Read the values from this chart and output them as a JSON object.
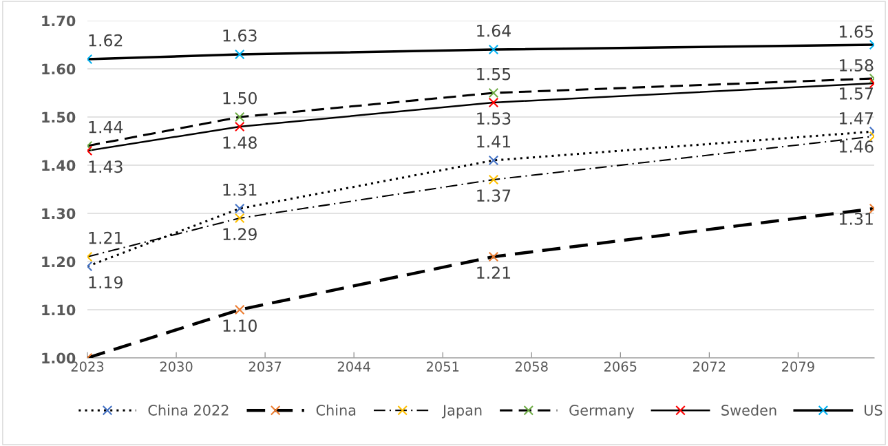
{
  "chart_data": {
    "type": "line",
    "x": [
      2023,
      2035,
      2055,
      2085
    ],
    "xlim": [
      2023,
      2085
    ],
    "xticks": [
      2023,
      2030,
      2037,
      2044,
      2051,
      2058,
      2065,
      2072,
      2079
    ],
    "ylim": [
      1.0,
      1.7
    ],
    "yticks": [
      {
        "value": 1.0,
        "label": "1.00"
      },
      {
        "value": 1.1,
        "label": "1.10"
      },
      {
        "value": 1.2,
        "label": "1.20"
      },
      {
        "value": 1.3,
        "label": "1.30"
      },
      {
        "value": 1.4,
        "label": "1.40"
      },
      {
        "value": 1.5,
        "label": "1.50"
      },
      {
        "value": 1.6,
        "label": "1.60"
      },
      {
        "value": 1.7,
        "label": "1.70"
      }
    ],
    "grid": "y",
    "legend": "bottom",
    "marker": "cross",
    "series": [
      {
        "name": "China 2022",
        "color": "#4472c4",
        "line_style": "dotted",
        "values": [
          1.19,
          1.31,
          1.41,
          1.47
        ],
        "value_labels": [
          "1.19",
          "1.31",
          "1.41",
          "1.47"
        ]
      },
      {
        "name": "China",
        "color": "#ed7d31",
        "line_style": "dashed",
        "values": [
          1.0,
          1.1,
          1.21,
          1.31
        ],
        "value_labels": [
          null,
          "1.10",
          "1.21",
          "1.31"
        ]
      },
      {
        "name": "Japan",
        "color": "#ffc000",
        "line_style": "dashdot",
        "values": [
          1.21,
          1.29,
          1.37,
          1.46
        ],
        "value_labels": [
          "1.21",
          "1.29",
          "1.37",
          "1.46"
        ]
      },
      {
        "name": "Germany",
        "color": "#70ad47",
        "line_style": "dashed",
        "values": [
          1.44,
          1.5,
          1.55,
          1.58
        ],
        "value_labels": [
          "1.44",
          "1.50",
          "1.55",
          "1.58"
        ]
      },
      {
        "name": "Sweden",
        "color": "#ff0000",
        "line_style": "solid",
        "values": [
          1.43,
          1.48,
          1.53,
          1.57
        ],
        "value_labels": [
          "1.43",
          "1.48",
          "1.53",
          "1.57"
        ]
      },
      {
        "name": "US",
        "color": "#00b0f0",
        "line_style": "solid",
        "values": [
          1.62,
          1.63,
          1.64,
          1.65
        ],
        "value_labels": [
          "1.62",
          "1.63",
          "1.64",
          "1.65"
        ]
      }
    ]
  }
}
